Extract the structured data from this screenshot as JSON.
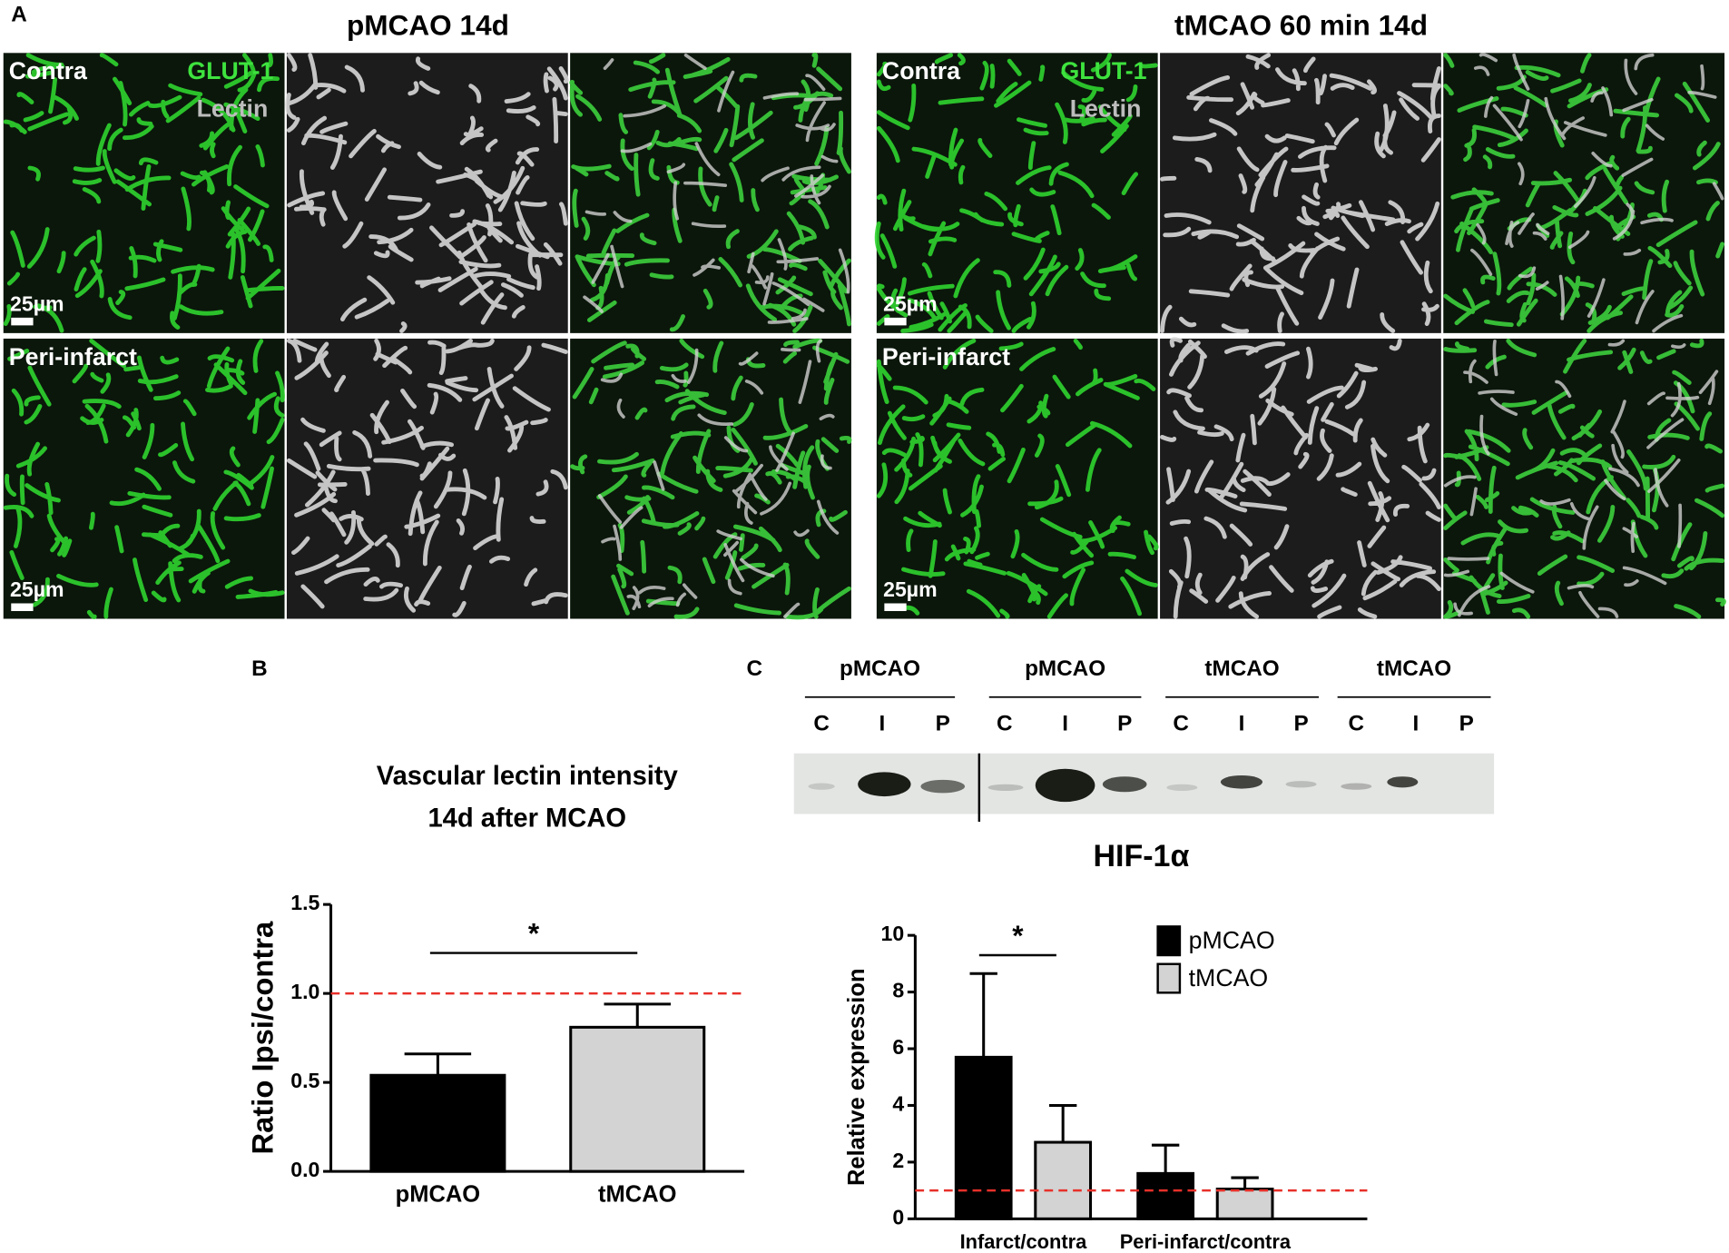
{
  "panel_labels": {
    "a": "A",
    "b": "B",
    "c": "C"
  },
  "panel_a": {
    "groups": [
      {
        "title": "pMCAO 14d",
        "stains": [
          "GLUT-1",
          "Lectin"
        ],
        "rows": [
          {
            "label": "Contra",
            "scale_bar": "25µm"
          },
          {
            "label": "Peri-infarct",
            "scale_bar": "25µm"
          }
        ]
      },
      {
        "title": "tMCAO 60 min 14d",
        "stains": [
          "GLUT-1",
          "Lectin"
        ],
        "rows": [
          {
            "label": "Contra",
            "scale_bar": "25µm"
          },
          {
            "label": "Peri-infarct",
            "scale_bar": "25µm"
          }
        ]
      }
    ]
  },
  "blot": {
    "groups": [
      {
        "label": "pMCAO",
        "lanes": [
          "C",
          "I",
          "P"
        ]
      },
      {
        "label": "pMCAO",
        "lanes": [
          "C",
          "I",
          "P"
        ]
      },
      {
        "label": "tMCAO",
        "lanes": [
          "C",
          "I",
          "P"
        ]
      },
      {
        "label": "tMCAO",
        "lanes": [
          "C",
          "I",
          "P"
        ]
      }
    ]
  },
  "chart_data": [
    {
      "type": "bar",
      "title": [
        "Vascular lectin intensity",
        "14d after MCAO"
      ],
      "ylabel": "Ratio Ipsi/contra",
      "categories": [
        "pMCAO",
        "tMCAO"
      ],
      "series": [
        {
          "values": [
            0.54,
            0.81
          ],
          "errors": [
            0.12,
            0.13
          ],
          "colors": [
            "#000000",
            "#d3d3d3"
          ]
        }
      ],
      "ylim": [
        0,
        1.5
      ],
      "yticks": [
        {
          "value": 0,
          "label": "0.0"
        },
        {
          "value": 0.5,
          "label": "0.5"
        },
        {
          "value": 1,
          "label": "1.0"
        },
        {
          "value": 1.5,
          "label": "1.5"
        }
      ],
      "reference_line": 1,
      "reference_color": "#e8302a",
      "significance": "*"
    },
    {
      "type": "bar",
      "title": "HIF-1α",
      "ylabel": "Relative expression",
      "categories": [
        "Infarct/contra",
        "Peri-infarct/contra"
      ],
      "series": [
        {
          "name": "pMCAO",
          "color": "#000000",
          "values": [
            5.7,
            1.6
          ],
          "errors": [
            2.95,
            1.0
          ]
        },
        {
          "name": "tMCAO",
          "color": "#d3d3d3",
          "values": [
            2.7,
            1.05
          ],
          "errors": [
            1.3,
            0.4
          ]
        }
      ],
      "ylim": [
        0,
        10
      ],
      "yticks": [
        0,
        2,
        4,
        6,
        8,
        10
      ],
      "reference_line": 1,
      "reference_color": "#e8302a",
      "significance": "*",
      "legend": "upper right"
    }
  ]
}
